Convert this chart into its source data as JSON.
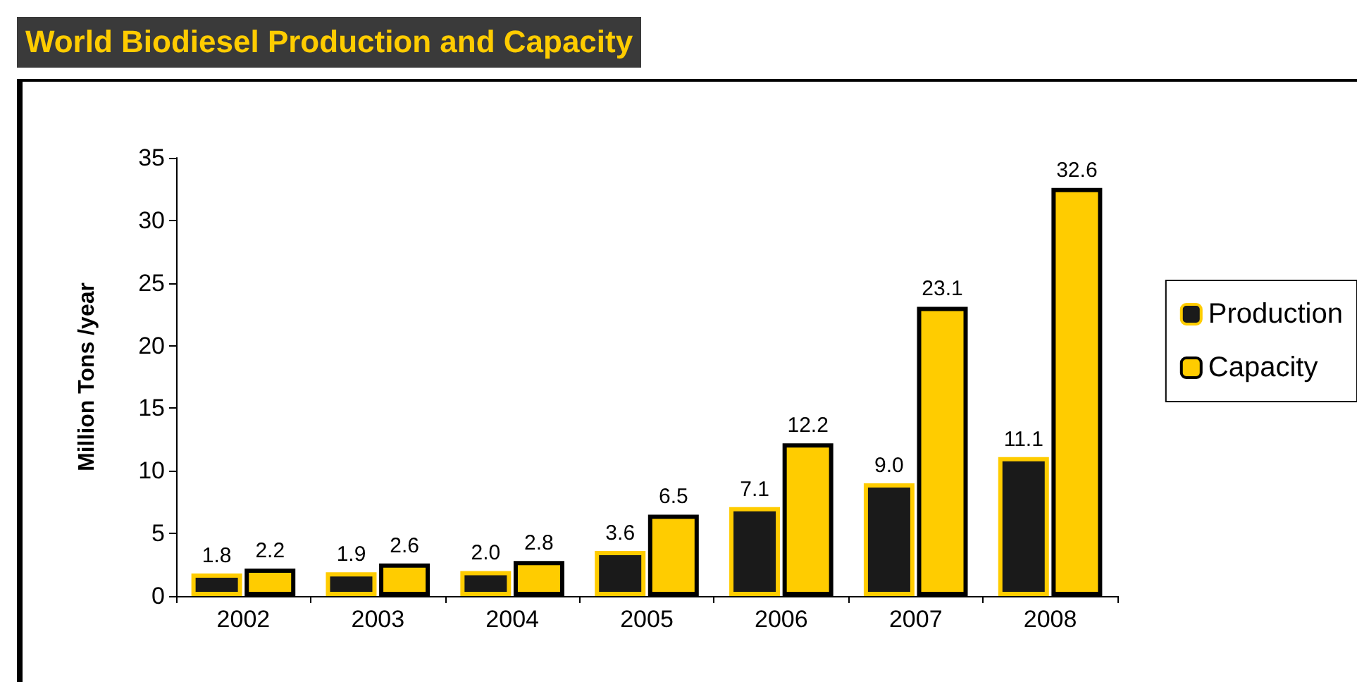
{
  "chart_data": {
    "type": "bar",
    "title": "World Biodiesel Production and Capacity",
    "ylabel": "Million Tons /year",
    "categories": [
      "2002",
      "2003",
      "2004",
      "2005",
      "2006",
      "2007",
      "2008"
    ],
    "series": [
      {
        "name": "Production",
        "color": "#1a1a1a",
        "values": [
          1.8,
          1.9,
          2.0,
          3.6,
          7.1,
          9.0,
          11.1
        ],
        "value_labels": [
          "1.8",
          "1.9",
          "2.0",
          "3.6",
          "7.1",
          "9.0",
          "11.1"
        ]
      },
      {
        "name": "Capacity",
        "color": "#ffcc00",
        "values": [
          2.2,
          2.6,
          2.8,
          6.5,
          12.2,
          23.1,
          32.6
        ],
        "value_labels": [
          "2.2",
          "2.6",
          "2.8",
          "6.5",
          "12.2",
          "23.1",
          "32.6"
        ]
      }
    ],
    "ylim": [
      0,
      35
    ],
    "yticks": [
      0,
      5,
      10,
      15,
      20,
      25,
      30,
      35
    ],
    "grid": false,
    "legend": "right"
  }
}
